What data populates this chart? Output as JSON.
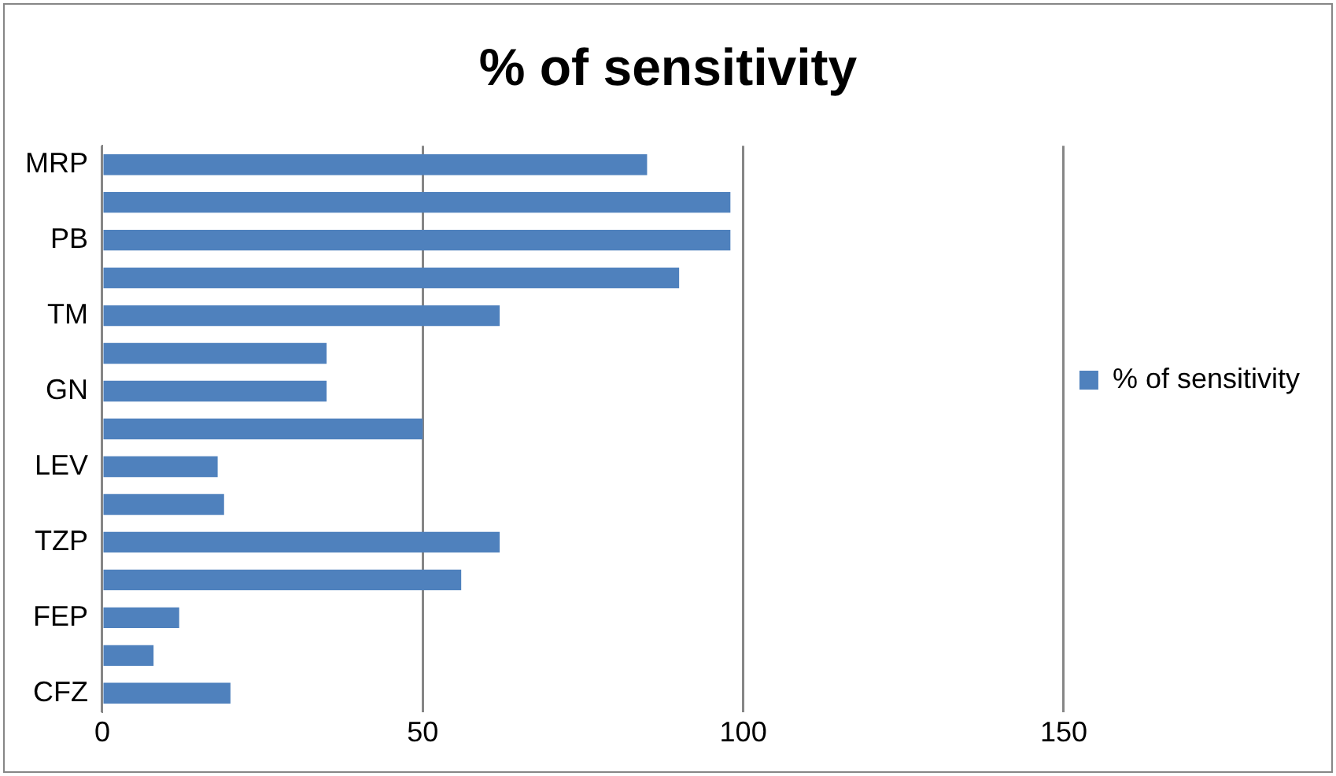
{
  "chart_data": {
    "type": "bar",
    "title": "% of sensitivity",
    "orientation": "horizontal",
    "categories": [
      "MRP",
      null,
      "PB",
      null,
      "TM",
      null,
      "GN",
      null,
      "LEV",
      null,
      "TZP",
      null,
      "FEP",
      null,
      "CFZ"
    ],
    "series": [
      {
        "name": "% of sensitivity",
        "color": "#4f81bd",
        "values": [
          85,
          98,
          98,
          90,
          62,
          35,
          35,
          50,
          18,
          19,
          62,
          56,
          12,
          8,
          20
        ]
      }
    ],
    "xlim": [
      0,
      150
    ],
    "xticks": [
      0,
      50,
      100,
      150
    ],
    "grid": "x",
    "legend": "right"
  }
}
